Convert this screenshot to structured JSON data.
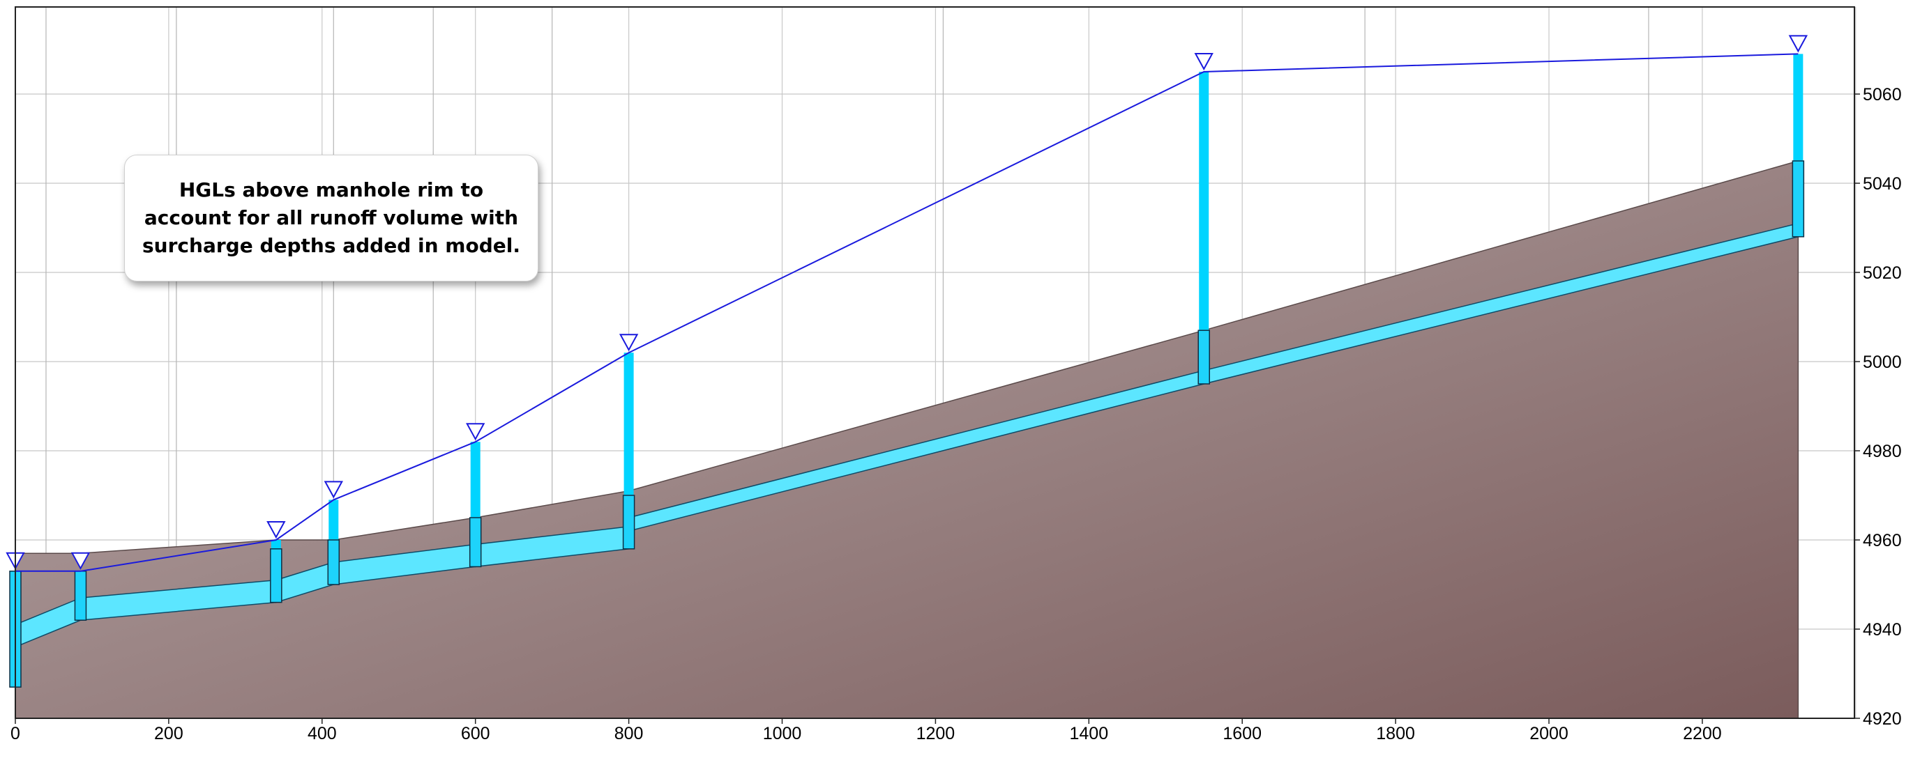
{
  "chart_data": {
    "type": "profile",
    "title": "",
    "xlabel": "",
    "ylabel": "",
    "xlim": [
      0,
      2550
    ],
    "ylim": [
      4920,
      5080
    ],
    "x_ticks": [
      0,
      200,
      400,
      600,
      800,
      1000,
      1200,
      1400,
      1600,
      1800,
      2000,
      2200
    ],
    "y_ticks": [
      4920,
      4940,
      4960,
      4980,
      5000,
      5020,
      5040,
      5060
    ],
    "y_axis_side": "right",
    "grid": true,
    "annotation": "HGLs above manhole rim to account for all runoff volume with surcharge depths added in model.",
    "colors": {
      "ground_top": "#b9abab",
      "ground_bottom": "#7b5c5c",
      "pipe": "#5ce6ff",
      "manhole": "#1ed3fb",
      "hgl": "#1a1add",
      "grid": "#c8c8c8"
    },
    "ground_surface": [
      {
        "x": 0,
        "y": 4957
      },
      {
        "x": 85,
        "y": 4957
      },
      {
        "x": 340,
        "y": 4960
      },
      {
        "x": 415,
        "y": 4960
      },
      {
        "x": 600,
        "y": 4965
      },
      {
        "x": 800,
        "y": 4971
      },
      {
        "x": 1550,
        "y": 5007
      },
      {
        "x": 2325,
        "y": 5045
      }
    ],
    "manholes": [
      {
        "x": 0,
        "invert": 4927,
        "rim": 4953,
        "hgl": 4953
      },
      {
        "x": 85,
        "invert": 4942,
        "rim": 4953,
        "hgl": 4953
      },
      {
        "x": 340,
        "invert": 4946,
        "rim": 4958,
        "hgl": 4960
      },
      {
        "x": 415,
        "invert": 4950,
        "rim": 4960,
        "hgl": 4969
      },
      {
        "x": 600,
        "invert": 4954,
        "rim": 4965,
        "hgl": 4982
      },
      {
        "x": 800,
        "invert": 4958,
        "rim": 4970,
        "hgl": 5002
      },
      {
        "x": 1550,
        "invert": 4995,
        "rim": 5007,
        "hgl": 5065
      },
      {
        "x": 2325,
        "invert": 5028,
        "rim": 5045,
        "hgl": 5069
      }
    ],
    "pipes": [
      {
        "from_x": 0,
        "to_x": 85,
        "from_invert": 4936,
        "to_invert": 4942,
        "diameter": 5
      },
      {
        "from_x": 85,
        "to_x": 340,
        "from_invert": 4942,
        "to_invert": 4946,
        "diameter": 5
      },
      {
        "from_x": 340,
        "to_x": 415,
        "from_invert": 4946,
        "to_invert": 4950,
        "diameter": 5
      },
      {
        "from_x": 415,
        "to_x": 600,
        "from_invert": 4950,
        "to_invert": 4954,
        "diameter": 5
      },
      {
        "from_x": 600,
        "to_x": 800,
        "from_invert": 4954,
        "to_invert": 4958,
        "diameter": 5
      },
      {
        "from_x": 800,
        "to_x": 1550,
        "from_invert": 4962,
        "to_invert": 4995,
        "diameter": 3
      },
      {
        "from_x": 1550,
        "to_x": 2325,
        "from_invert": 4995,
        "to_invert": 5028,
        "diameter": 3
      }
    ],
    "hgl": [
      {
        "x": 0,
        "y": 4953
      },
      {
        "x": 85,
        "y": 4953
      },
      {
        "x": 340,
        "y": 4960
      },
      {
        "x": 415,
        "y": 4969
      },
      {
        "x": 600,
        "y": 4982
      },
      {
        "x": 800,
        "y": 5002
      },
      {
        "x": 1550,
        "y": 5065
      },
      {
        "x": 2325,
        "y": 5069
      }
    ],
    "vertical_gridlines_x": [
      0,
      200,
      400,
      600,
      800,
      1000,
      1200,
      1400,
      1600,
      1800,
      2000,
      2200,
      2400
    ],
    "extra_vertical_lines_x": [
      40,
      210,
      415,
      545,
      700,
      1210,
      1760,
      2130
    ]
  }
}
